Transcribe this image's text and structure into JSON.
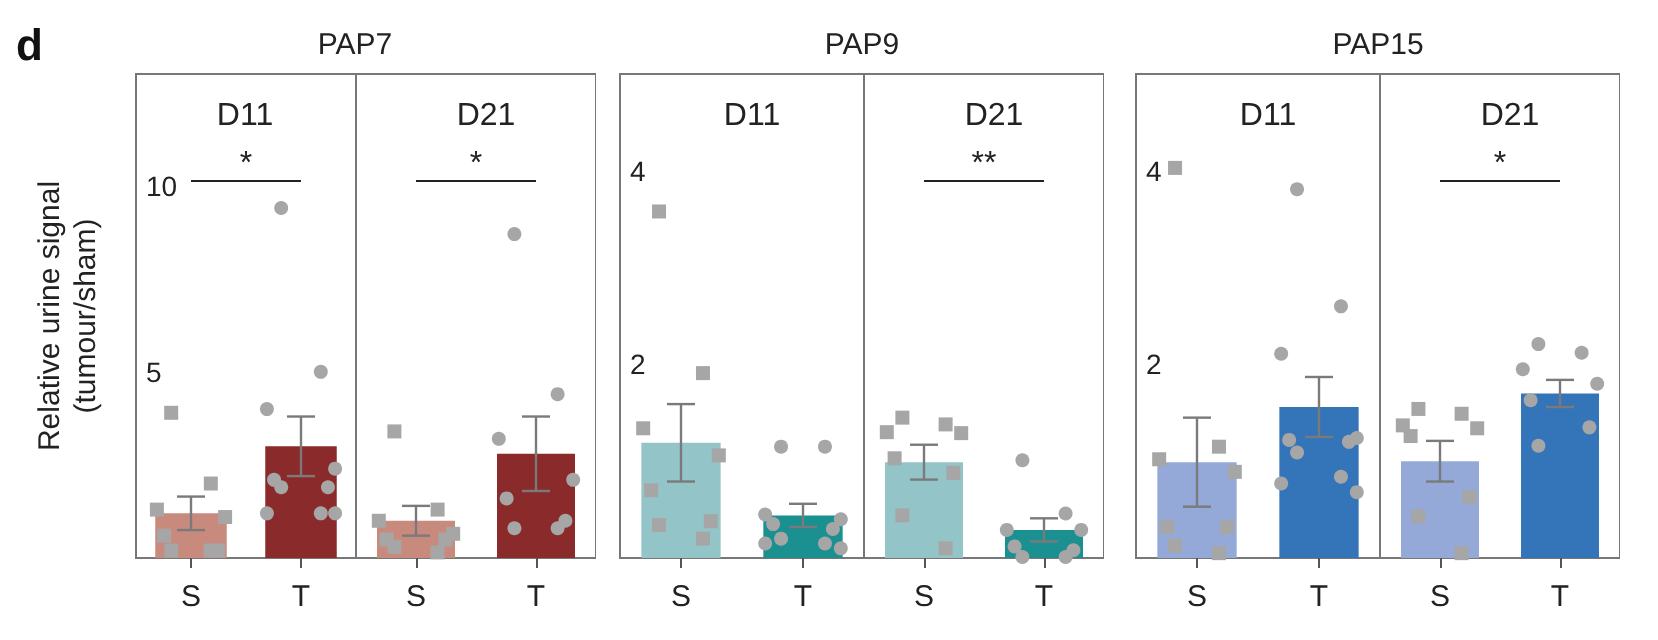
{
  "chart_data": [
    {
      "type": "bar",
      "title": "PAP7",
      "subtitle": "D11",
      "ylabel": "Relative urine signal\n(tumour/sham)",
      "categories": [
        "S",
        "T"
      ],
      "ylim": [
        0,
        13
      ],
      "yticks": [
        5,
        10
      ],
      "annotations": [
        "d",
        "*"
      ],
      "series": [
        {
          "colors": [
            "#c98a7e",
            "#8b2a2a"
          ],
          "values": [
            1.2,
            3.0
          ],
          "errors": [
            0.45,
            0.8
          ]
        },
        {
          "type": "scatter",
          "marker": "square",
          "color": "#a6a6a6",
          "x": [
            "S",
            "S",
            "S",
            "S",
            "S",
            "S",
            "S",
            "S"
          ],
          "values": [
            3.9,
            2.0,
            1.3,
            1.1,
            0.6,
            0.2,
            0.2,
            0.2
          ]
        },
        {
          "type": "scatter",
          "marker": "circle",
          "color": "#a6a6a6",
          "x": [
            "T",
            "T",
            "T",
            "T",
            "T",
            "T",
            "T",
            "T",
            "T",
            "T"
          ],
          "values": [
            9.4,
            5.0,
            4.0,
            2.4,
            2.1,
            1.9,
            1.9,
            1.2,
            1.2,
            1.2
          ]
        }
      ]
    },
    {
      "type": "bar",
      "title": "D21",
      "categories": [
        "S",
        "T"
      ],
      "ylim": [
        0,
        13
      ],
      "tick_labels": "x",
      "annotations": [
        "*"
      ],
      "series": [
        {
          "colors": [
            "#c98a7e",
            "#8b2a2a"
          ],
          "values": [
            1.0,
            2.8
          ],
          "errors": [
            0.4,
            1.0
          ]
        },
        {
          "type": "scatter",
          "marker": "square",
          "color": "#a6a6a6",
          "x": [
            "S",
            "S",
            "S",
            "S",
            "S",
            "S",
            "S",
            "S"
          ],
          "values": [
            3.4,
            1.3,
            1.0,
            0.65,
            0.5,
            0.5,
            0.3,
            0.15
          ]
        },
        {
          "type": "scatter",
          "marker": "circle",
          "color": "#a6a6a6",
          "x": [
            "T",
            "T",
            "T",
            "T",
            "T",
            "T",
            "T",
            "T"
          ],
          "values": [
            8.7,
            4.4,
            3.2,
            2.1,
            1.6,
            1.0,
            0.8,
            0.8
          ]
        }
      ]
    },
    {
      "type": "bar",
      "title": "PAP9",
      "subtitle": "D11",
      "categories": [
        "S",
        "T"
      ],
      "ylim": [
        0,
        5
      ],
      "yticks": [
        2,
        4
      ],
      "series": [
        {
          "colors": [
            "#93c4c8",
            "#1a9090"
          ],
          "values": [
            1.19,
            0.44
          ],
          "errors": [
            0.4,
            0.12
          ]
        },
        {
          "type": "scatter",
          "marker": "square",
          "color": "#a6a6a6",
          "x": [
            "S",
            "S",
            "S",
            "S",
            "S",
            "S",
            "S",
            "S"
          ],
          "values": [
            3.58,
            1.91,
            1.34,
            1.06,
            0.7,
            0.38,
            0.34,
            0.2
          ]
        },
        {
          "type": "scatter",
          "marker": "circle",
          "color": "#a6a6a6",
          "x": [
            "T",
            "T",
            "T",
            "T",
            "T",
            "T",
            "T",
            "T",
            "T",
            "T"
          ],
          "values": [
            1.15,
            1.15,
            0.45,
            0.4,
            0.35,
            0.3,
            0.2,
            0.15,
            0.15,
            0.1
          ]
        }
      ]
    },
    {
      "type": "bar",
      "title": "D21",
      "categories": [
        "S",
        "T"
      ],
      "ylim": [
        0,
        5
      ],
      "tick_labels": "x",
      "annotations": [
        "**"
      ],
      "series": [
        {
          "colors": [
            "#93c4c8",
            "#1a9090"
          ],
          "values": [
            0.99,
            0.29
          ],
          "errors": [
            0.18,
            0.12
          ]
        },
        {
          "type": "scatter",
          "marker": "square",
          "color": "#a6a6a6",
          "x": [
            "S",
            "S",
            "S",
            "S",
            "S",
            "S",
            "S",
            "S"
          ],
          "values": [
            1.45,
            1.38,
            1.3,
            1.29,
            1.03,
            0.88,
            0.44,
            0.1
          ]
        },
        {
          "type": "scatter",
          "marker": "circle",
          "color": "#a6a6a6",
          "x": [
            "T",
            "T",
            "T",
            "T",
            "T",
            "T",
            "T",
            "T"
          ],
          "values": [
            1.01,
            0.46,
            0.29,
            0.29,
            0.12,
            0.08,
            0.01,
            0.01
          ]
        }
      ]
    },
    {
      "type": "bar",
      "title": "PAP15",
      "subtitle": "D11",
      "categories": [
        "S",
        "T"
      ],
      "ylim": [
        0,
        5
      ],
      "yticks": [
        2,
        4
      ],
      "series": [
        {
          "colors": [
            "#94a9d8",
            "#3474b8"
          ],
          "values": [
            0.99,
            1.56
          ],
          "errors": [
            0.46,
            0.31
          ]
        },
        {
          "type": "scatter",
          "marker": "square",
          "color": "#a6a6a6",
          "x": [
            "S",
            "S",
            "S",
            "S",
            "S",
            "S",
            "S",
            "S"
          ],
          "values": [
            4.03,
            1.15,
            1.02,
            0.89,
            0.32,
            0.32,
            0.13,
            0.05
          ]
        },
        {
          "type": "scatter",
          "marker": "circle",
          "color": "#a6a6a6",
          "x": [
            "T",
            "T",
            "T",
            "T",
            "T",
            "T",
            "T",
            "T",
            "T",
            "T"
          ],
          "values": [
            3.81,
            2.6,
            2.11,
            1.24,
            1.22,
            1.2,
            1.09,
            0.84,
            0.77,
            0.68
          ]
        }
      ]
    },
    {
      "type": "bar",
      "title": "D21",
      "categories": [
        "S",
        "T"
      ],
      "ylim": [
        0,
        5
      ],
      "tick_labels": "x",
      "annotations": [
        "*"
      ],
      "series": [
        {
          "colors": [
            "#94a9d8",
            "#3474b8"
          ],
          "values": [
            1.0,
            1.7
          ],
          "errors": [
            0.21,
            0.14
          ]
        },
        {
          "type": "scatter",
          "marker": "square",
          "color": "#a6a6a6",
          "x": [
            "S",
            "S",
            "S",
            "S",
            "S",
            "S",
            "S",
            "S"
          ],
          "values": [
            1.54,
            1.49,
            1.37,
            1.34,
            1.26,
            0.63,
            0.43,
            0.05
          ]
        },
        {
          "type": "scatter",
          "marker": "circle",
          "color": "#a6a6a6",
          "x": [
            "T",
            "T",
            "T",
            "T",
            "T",
            "T",
            "T"
          ],
          "values": [
            2.21,
            2.12,
            1.95,
            1.8,
            1.63,
            1.35,
            1.16
          ]
        }
      ]
    }
  ]
}
